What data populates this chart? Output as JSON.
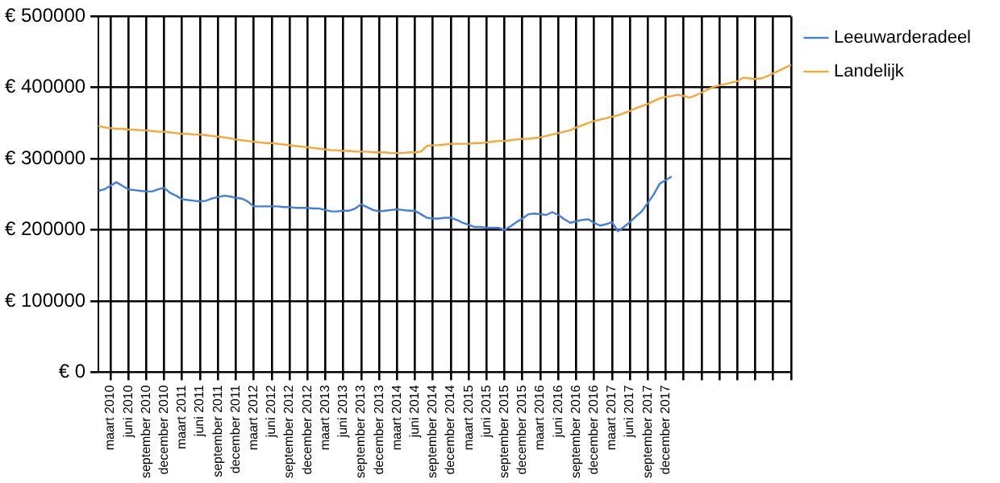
{
  "chart_data": {
    "type": "line",
    "categories": [
      null,
      null,
      "maart 2010",
      null,
      null,
      "juni 2010",
      null,
      null,
      "september 2010",
      null,
      null,
      "december 2010",
      null,
      null,
      "maart 2011",
      null,
      null,
      "juni 2011",
      null,
      null,
      "september 2011",
      null,
      null,
      "december 2011",
      null,
      null,
      "maart 2012",
      null,
      null,
      "juni 2012",
      null,
      null,
      "september 2012",
      null,
      null,
      "december 2012",
      null,
      null,
      "maart 2013",
      null,
      null,
      "juni 2013",
      null,
      null,
      "september 2013",
      null,
      null,
      "december 2013",
      null,
      null,
      "maart 2014",
      null,
      null,
      "juni 2014",
      null,
      null,
      "september 2014",
      null,
      null,
      "december 2014",
      null,
      null,
      "maart 2015",
      null,
      null,
      "juni 2015",
      null,
      null,
      "september 2015",
      null,
      null,
      "december 2015",
      null,
      null,
      "maart 2016",
      null,
      null,
      "juni 2016",
      null,
      null,
      "september 2016",
      null,
      null,
      "december 2016",
      null,
      null,
      "maart 2017",
      null,
      null,
      "juni 2017",
      null,
      null,
      "september 2017",
      null,
      null,
      "december 2017",
      null,
      null,
      null,
      null,
      null,
      null,
      null,
      null,
      null,
      null,
      null,
      null,
      null,
      null,
      null,
      null,
      null,
      null,
      null,
      null,
      null
    ],
    "series": [
      {
        "name": "Leeuwarderadeel",
        "color": "#3f7fe0",
        "values": [
          255000,
          257000,
          262000,
          267000,
          262000,
          257000,
          256000,
          255000,
          254000,
          254000,
          257000,
          259000,
          252000,
          248000,
          243000,
          242000,
          241000,
          240000,
          241000,
          244000,
          246000,
          248000,
          247000,
          245000,
          244000,
          240000,
          233000,
          233000,
          233000,
          233000,
          233000,
          232000,
          232000,
          231000,
          231000,
          231000,
          230000,
          230000,
          228000,
          226000,
          226000,
          227000,
          227000,
          230000,
          236000,
          232000,
          228000,
          226000,
          227000,
          228000,
          229000,
          228000,
          227000,
          227000,
          222000,
          217000,
          216000,
          216000,
          217000,
          217000,
          214000,
          210000,
          207000,
          204000,
          204000,
          203000,
          203000,
          203000,
          200000,
          205000,
          211000,
          216000,
          222000,
          223000,
          222000,
          221000,
          225000,
          221000,
          215000,
          210000,
          212000,
          214000,
          215000,
          210000,
          206000,
          208000,
          211000,
          198000,
          204000,
          211000,
          219000,
          226000,
          238000,
          250000,
          265000,
          270000,
          275000,
          null,
          null,
          null,
          null,
          null,
          null,
          null,
          null,
          null,
          null,
          null,
          null,
          null,
          null,
          null,
          null,
          null,
          null,
          null,
          null
        ]
      },
      {
        "name": "Landelijk",
        "color": "#f7a833",
        "values": [
          346000,
          344000,
          343000,
          342000,
          342000,
          341000,
          341000,
          340000,
          340000,
          339000,
          338000,
          338000,
          337000,
          336000,
          335000,
          335000,
          334000,
          334000,
          333000,
          332000,
          331000,
          330000,
          329000,
          327000,
          326000,
          325000,
          324000,
          323000,
          322000,
          322000,
          321000,
          320000,
          319000,
          318000,
          317000,
          316000,
          315000,
          314000,
          313000,
          312000,
          312000,
          311000,
          311000,
          310000,
          310000,
          310000,
          309000,
          309000,
          309000,
          308000,
          308000,
          308000,
          309000,
          309000,
          310000,
          318000,
          319000,
          319000,
          320000,
          321000,
          321000,
          321000,
          321000,
          322000,
          322000,
          323000,
          324000,
          325000,
          325000,
          326000,
          327000,
          328000,
          328000,
          329000,
          330000,
          332000,
          334000,
          336000,
          338000,
          340000,
          344000,
          347000,
          350000,
          353000,
          355000,
          357000,
          359000,
          361000,
          364000,
          367000,
          371000,
          374000,
          377000,
          381000,
          385000,
          387000,
          388000,
          390000,
          388000,
          386000,
          389000,
          393000,
          397000,
          401000,
          403000,
          405000,
          407000,
          409000,
          414000,
          413000,
          412000,
          413000,
          416000,
          420000,
          424000,
          428000,
          432000
        ]
      }
    ],
    "ylim": [
      0,
      500000
    ],
    "yticks": [
      {
        "value": 0,
        "label": "€ 0"
      },
      {
        "value": 100000,
        "label": "€ 100000"
      },
      {
        "value": 200000,
        "label": "€ 200000"
      },
      {
        "value": 300000,
        "label": "€ 300000"
      },
      {
        "value": 400000,
        "label": "€ 400000"
      },
      {
        "value": 500000,
        "label": "€ 500000"
      }
    ],
    "grid": true,
    "legend": "top right"
  }
}
